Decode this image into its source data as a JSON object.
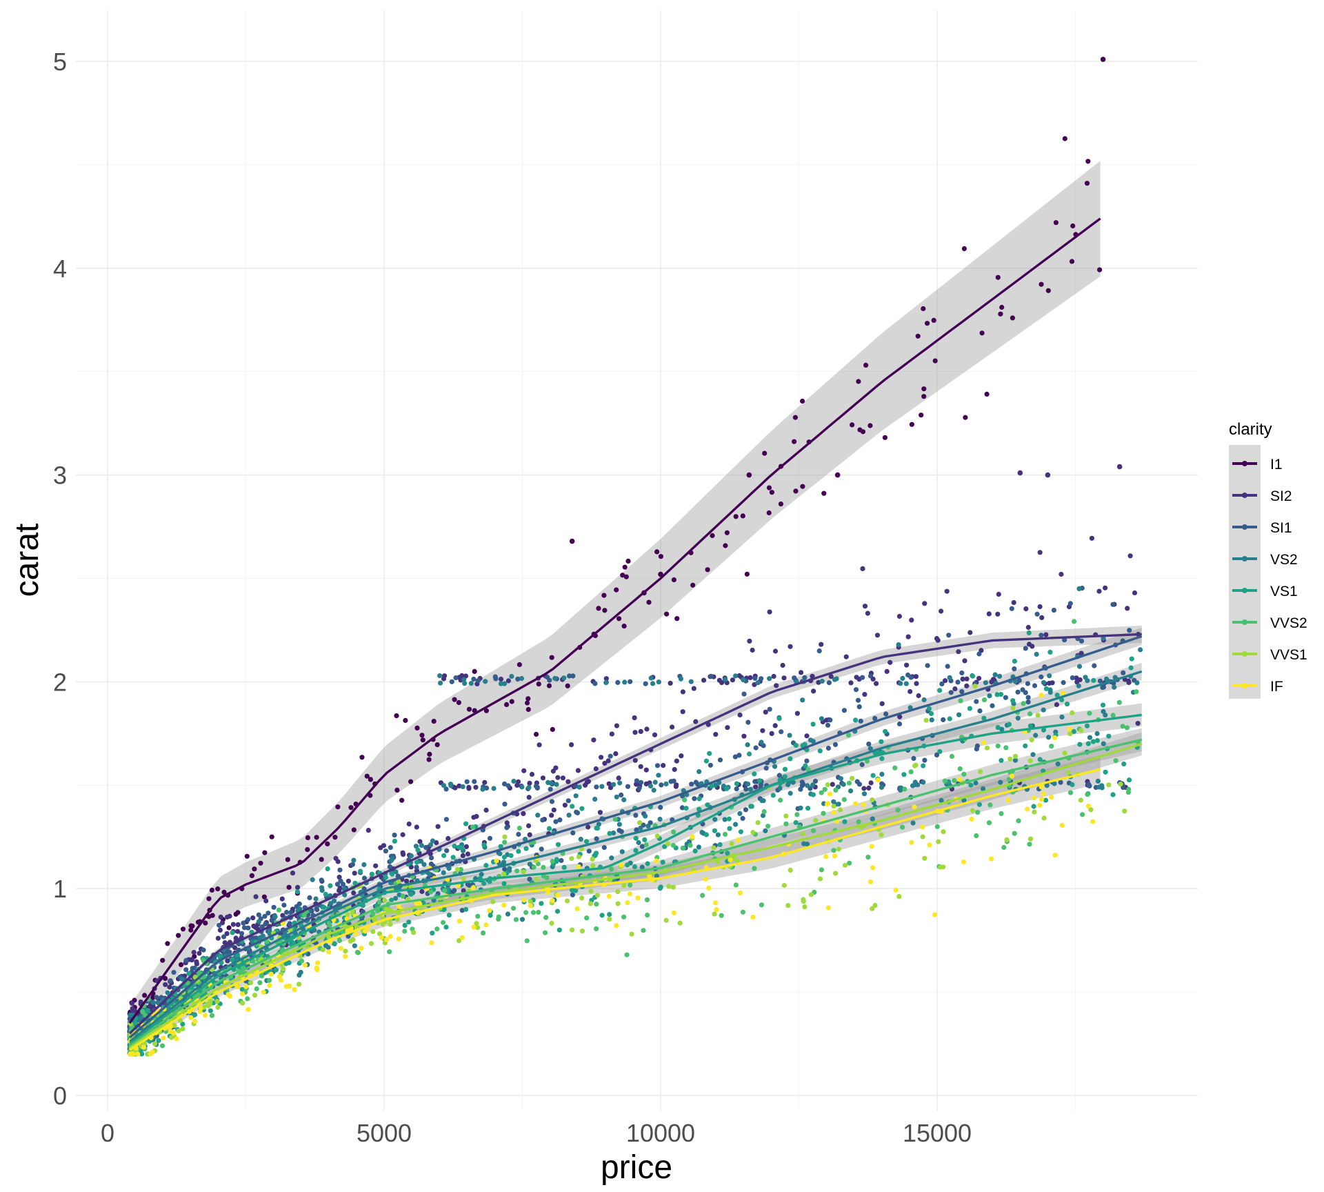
{
  "chart_data": {
    "type": "scatter",
    "title": "",
    "xlabel": "price",
    "ylabel": "carat",
    "xlim": [
      -600,
      19100
    ],
    "ylim": [
      -0.1,
      5.1
    ],
    "x_ticks": [
      0,
      5000,
      10000,
      15000
    ],
    "x_tick_labels": [
      "0",
      "5000",
      "10000",
      "15000"
    ],
    "y_ticks": [
      0,
      1,
      2,
      3,
      4,
      5
    ],
    "y_tick_labels": [
      "0",
      "1",
      "2",
      "3",
      "4",
      "5"
    ],
    "grid": true,
    "legend": {
      "title": "clarity",
      "position": "right"
    },
    "series": [
      {
        "name": "I1",
        "color": "#440154",
        "smooth": {
          "x": [
            400,
            1200,
            2000,
            2500,
            3500,
            4200,
            5000,
            6000,
            8000,
            10000,
            12000,
            14000,
            16000,
            18000
          ],
          "y": [
            0.35,
            0.65,
            0.95,
            1.02,
            1.12,
            1.3,
            1.55,
            1.75,
            2.05,
            2.5,
            3.0,
            3.45,
            3.85,
            4.25
          ]
        },
        "band": 0.2,
        "max_price": 18000
      },
      {
        "name": "SI2",
        "color": "#46337E",
        "smooth": {
          "x": [
            400,
            2000,
            4000,
            6000,
            8000,
            10000,
            12000,
            14000,
            16000,
            18700
          ],
          "y": [
            0.3,
            0.7,
            0.95,
            1.2,
            1.45,
            1.7,
            1.95,
            2.12,
            2.2,
            2.23
          ]
        },
        "band": 0.03,
        "max_price": 18700
      },
      {
        "name": "SI1",
        "color": "#365C8D",
        "smooth": {
          "x": [
            400,
            2000,
            4000,
            5000,
            7000,
            10000,
            12000,
            14000,
            16000,
            18700
          ],
          "y": [
            0.28,
            0.65,
            0.9,
            1.03,
            1.18,
            1.42,
            1.62,
            1.82,
            1.98,
            2.22
          ]
        },
        "band": 0.03,
        "max_price": 18700
      },
      {
        "name": "VS2",
        "color": "#277F8E",
        "smooth": {
          "x": [
            400,
            2000,
            4000,
            5000,
            7000,
            10000,
            12000,
            14000,
            16000,
            18700
          ],
          "y": [
            0.26,
            0.6,
            0.88,
            1.0,
            1.1,
            1.3,
            1.5,
            1.68,
            1.82,
            2.05
          ]
        },
        "band": 0.03,
        "max_price": 18700
      },
      {
        "name": "VS1",
        "color": "#1FA187",
        "smooth": {
          "x": [
            400,
            2000,
            4000,
            5000,
            7000,
            9000,
            10000,
            12000,
            14000,
            16000,
            18700
          ],
          "y": [
            0.25,
            0.58,
            0.85,
            0.98,
            1.05,
            1.1,
            1.22,
            1.5,
            1.65,
            1.75,
            1.84
          ]
        },
        "band": 0.04,
        "max_price": 18700
      },
      {
        "name": "VVS2",
        "color": "#4AC16D",
        "smooth": {
          "x": [
            400,
            2000,
            4000,
            5000,
            7000,
            10000,
            12000,
            14000,
            16000,
            18700
          ],
          "y": [
            0.24,
            0.55,
            0.8,
            0.92,
            1.0,
            1.1,
            1.25,
            1.4,
            1.55,
            1.72
          ]
        },
        "band": 0.04,
        "max_price": 18700
      },
      {
        "name": "VVS1",
        "color": "#9FDA3A",
        "smooth": {
          "x": [
            400,
            2000,
            4000,
            5000,
            7000,
            10000,
            12000,
            14000,
            16000,
            18700
          ],
          "y": [
            0.23,
            0.52,
            0.78,
            0.88,
            0.98,
            1.08,
            1.2,
            1.33,
            1.48,
            1.7
          ]
        },
        "band": 0.04,
        "max_price": 18700
      },
      {
        "name": "IF",
        "color": "#FDE725",
        "smooth": {
          "x": [
            400,
            2000,
            4000,
            5000,
            7000,
            10000,
            12000,
            14000,
            16000,
            18000
          ],
          "y": [
            0.22,
            0.5,
            0.75,
            0.85,
            0.97,
            1.05,
            1.15,
            1.3,
            1.45,
            1.58
          ]
        },
        "band": 0.05,
        "max_price": 18000
      }
    ],
    "notable_points": [
      {
        "series": "I1",
        "x": 18000,
        "y": 5.01
      },
      {
        "series": "I1",
        "x": 11600,
        "y": 3.0
      },
      {
        "series": "I1",
        "x": 13200,
        "y": 3.0
      },
      {
        "series": "SI2",
        "x": 16500,
        "y": 3.01
      },
      {
        "series": "SI2",
        "x": 17000,
        "y": 3.0
      },
      {
        "series": "SI2",
        "x": 18300,
        "y": 3.04
      },
      {
        "series": "I1",
        "x": 8400,
        "y": 2.68
      },
      {
        "series": "I1",
        "x": 9700,
        "y": 2.43
      },
      {
        "series": "I1",
        "x": 10000,
        "y": 2.52
      }
    ]
  }
}
